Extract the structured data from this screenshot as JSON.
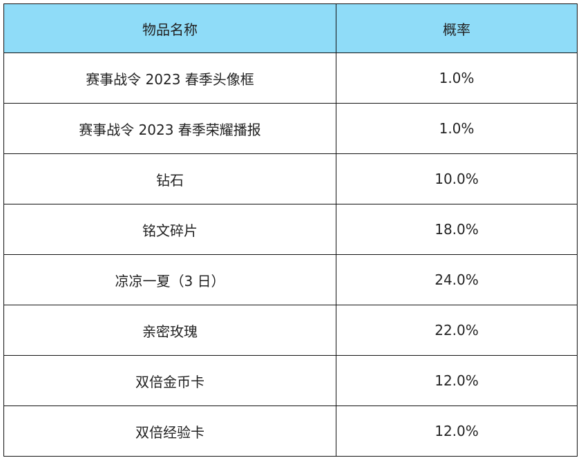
{
  "table": {
    "headers": [
      "物品名称",
      "概率"
    ],
    "rows": [
      {
        "name": "赛事战令 2023 春季头像框",
        "rate": "1.0%"
      },
      {
        "name": "赛事战令 2023 春季荣耀播报",
        "rate": "1.0%"
      },
      {
        "name": "钻石",
        "rate": "10.0%"
      },
      {
        "name": "铭文碎片",
        "rate": "18.0%"
      },
      {
        "name": "凉凉一夏（3 日）",
        "rate": "24.0%"
      },
      {
        "name": "亲密玫瑰",
        "rate": "22.0%"
      },
      {
        "name": "双倍金币卡",
        "rate": "12.0%"
      },
      {
        "name": "双倍经验卡",
        "rate": "12.0%"
      }
    ]
  },
  "colors": {
    "header_bg": "#8fdcf8",
    "border": "#111111",
    "text": "#222222"
  }
}
